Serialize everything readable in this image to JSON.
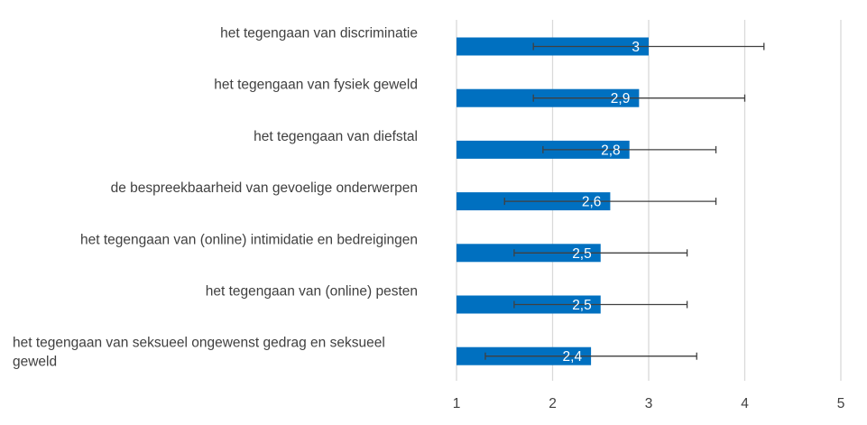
{
  "chart_data": {
    "type": "bar",
    "orientation": "horizontal",
    "categories": [
      "het tegengaan van discriminatie",
      "het tegengaan van fysiek geweld",
      "het tegengaan van diefstal",
      "de bespreekbaarheid van gevoelige onderwerpen",
      "het tegengaan van (online) intimidatie en bedreigingen",
      "het tegengaan van (online) pesten",
      "het tegengaan van seksueel ongewenst gedrag en seksueel geweld"
    ],
    "values": [
      3.0,
      2.9,
      2.8,
      2.6,
      2.5,
      2.5,
      2.4
    ],
    "value_labels": [
      "3",
      "2,9",
      "2,8",
      "2,6",
      "2,5",
      "2,5",
      "2,4"
    ],
    "error_low": [
      1.8,
      1.8,
      1.9,
      1.5,
      1.6,
      1.6,
      1.3
    ],
    "error_high": [
      4.2,
      4.0,
      3.7,
      3.7,
      3.4,
      3.4,
      3.5
    ],
    "xlim": [
      1,
      5
    ],
    "xticks": [
      "1",
      "2",
      "3",
      "4",
      "5"
    ],
    "grid": true,
    "title": "",
    "xlabel": "",
    "ylabel": "",
    "colors": {
      "bar": "#0070C0",
      "grid": "#D9D9D9",
      "error": "#404040"
    }
  }
}
